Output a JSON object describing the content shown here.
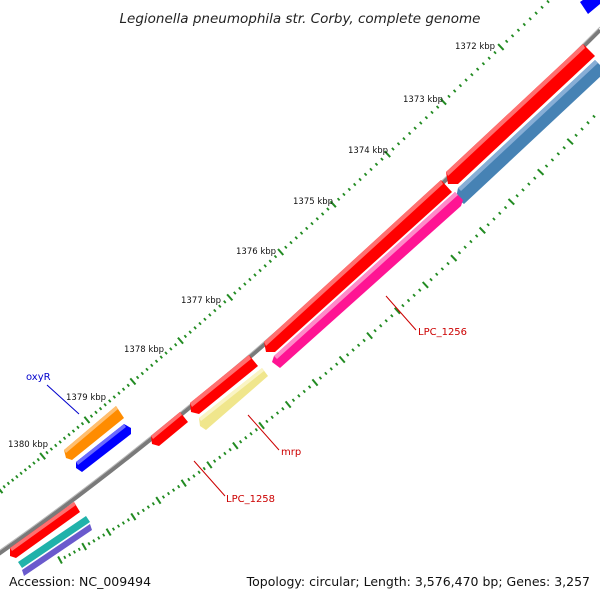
{
  "title": "Legionella pneumophila str. Corby, complete genome",
  "footer": {
    "accession": "Accession: NC_009494",
    "summary": "Topology: circular; Length: 3,576,470 bp; Genes: 3,257"
  },
  "ticks": [
    {
      "label": "1372 kbp"
    },
    {
      "label": "1373 kbp"
    },
    {
      "label": "1374 kbp"
    },
    {
      "label": "1375 kbp"
    },
    {
      "label": "1376 kbp"
    },
    {
      "label": "1377 kbp"
    },
    {
      "label": "1378 kbp"
    },
    {
      "label": "1379 kbp"
    },
    {
      "label": "1380 kbp"
    }
  ],
  "gene_labels": [
    {
      "text": "LPC_1256",
      "color": "#cc0000"
    },
    {
      "text": "mrp",
      "color": "#cc0000"
    },
    {
      "text": "LPC_1258",
      "color": "#cc0000"
    },
    {
      "text": "oxyR",
      "color": "#0000cc"
    }
  ],
  "colors": {
    "backbone": "#7a7a7a",
    "cds": "#ff0000",
    "gene_forward": "#4682b4",
    "gene_pink": "#ff1493",
    "gene_khaki": "#f0e68c",
    "gene_orange": "#ff8c00",
    "gene_blue": "#0000ff",
    "gene_teal": "#20b2aa",
    "gene_purple": "#6a5acd",
    "tick": "#228b22"
  }
}
